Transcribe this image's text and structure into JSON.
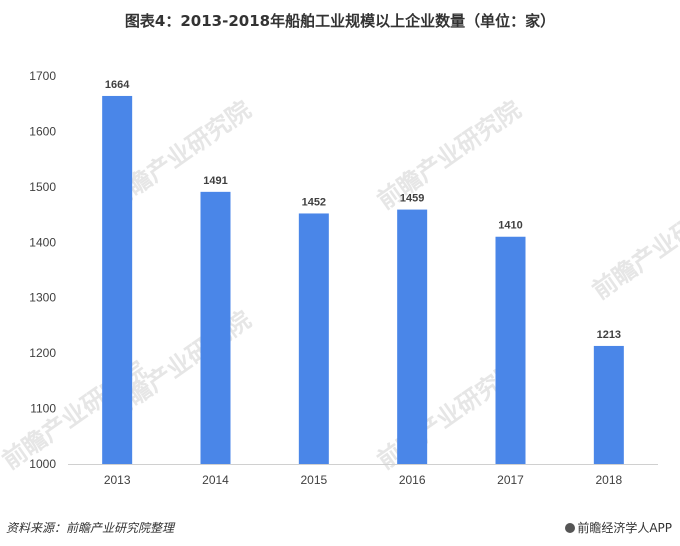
{
  "chart_data": {
    "type": "bar",
    "title": "图表4：2013-2018年船舶工业规模以上企业数量（单位：家）",
    "categories": [
      "2013",
      "2014",
      "2015",
      "2016",
      "2017",
      "2018"
    ],
    "values": [
      1664,
      1491,
      1452,
      1459,
      1410,
      1213
    ],
    "ylim": [
      1000,
      1700
    ],
    "yticks": [
      1000,
      1100,
      1200,
      1300,
      1400,
      1500,
      1600,
      1700
    ],
    "grid": false,
    "legend": "none",
    "bar_color": "#4a86e8"
  },
  "footer": {
    "source": "资料来源：前瞻产业研究院整理",
    "brand": "前瞻经济学人APP"
  },
  "watermark": "前瞻产业研究院"
}
